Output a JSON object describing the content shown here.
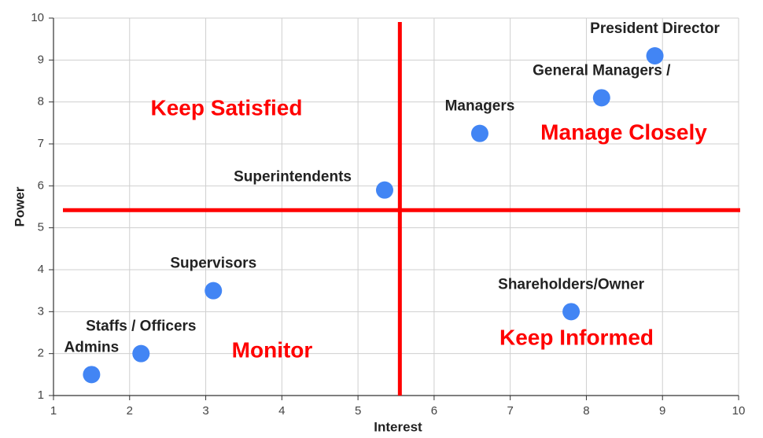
{
  "chart_data": {
    "type": "scatter",
    "x_label": "Interest",
    "y_label": "Power",
    "xlim": [
      1,
      10
    ],
    "ylim": [
      1,
      10
    ],
    "xticks": [
      1,
      2,
      3,
      4,
      5,
      6,
      7,
      8,
      9,
      10
    ],
    "yticks": [
      1,
      2,
      3,
      4,
      5,
      6,
      7,
      8,
      9,
      10
    ],
    "grid": true,
    "color": "#4285f4",
    "labels": [
      "President Director",
      "General Managers /",
      "Managers",
      "Superintendents",
      "Supervisors",
      "Shareholders/Owner",
      "Staffs / Officers",
      "Admins"
    ],
    "x": [
      8.9,
      8.2,
      6.6,
      5.35,
      3.1,
      7.8,
      2.15,
      1.5
    ],
    "y": [
      9.1,
      8.1,
      7.25,
      5.9,
      3.5,
      3.0,
      2.0,
      1.5
    ],
    "dividers": {
      "x": 5.55,
      "y": 5.42,
      "color": "#ff0000"
    },
    "quadrants": [
      "Keep Satisfied",
      "Manage Closely",
      "Monitor",
      "Keep Informed"
    ]
  }
}
